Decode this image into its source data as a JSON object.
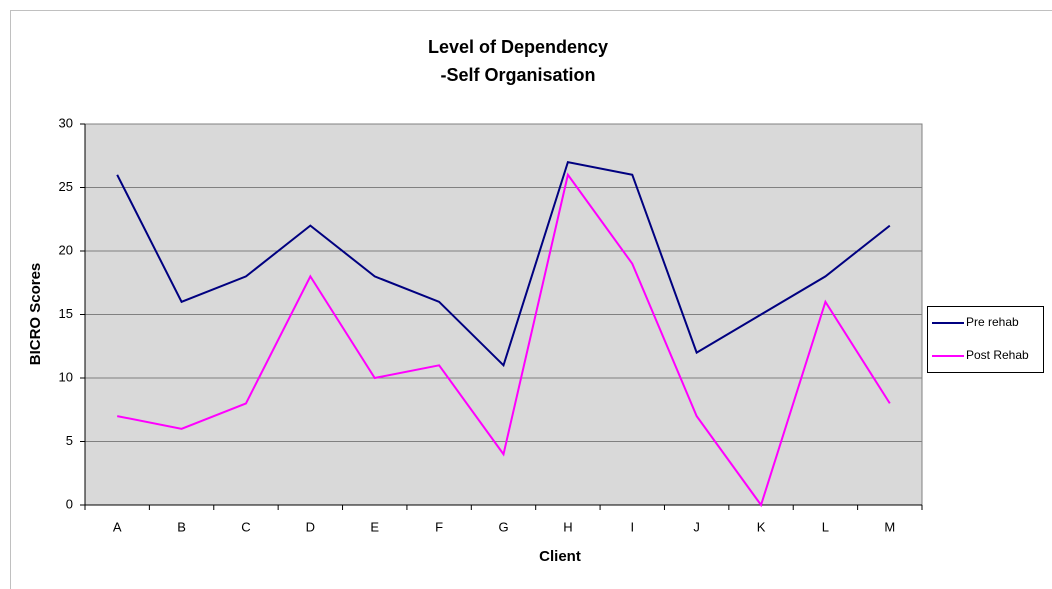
{
  "chart_data": {
    "type": "line",
    "title": [
      "Level of Dependency",
      "-Self Organisation"
    ],
    "x_label": "Client",
    "y_label": "BICRO Scores",
    "categories": [
      "A",
      "B",
      "C",
      "D",
      "E",
      "F",
      "G",
      "H",
      "I",
      "J",
      "K",
      "L",
      "M"
    ],
    "series": [
      {
        "name": "Pre rehab",
        "color": "#000080",
        "values": [
          26,
          16,
          18,
          22,
          18,
          16,
          11,
          27,
          26,
          12,
          15,
          18,
          22
        ]
      },
      {
        "name": "Post Rehab",
        "color": "#ff00ff",
        "values": [
          7,
          6,
          8,
          18,
          10,
          11,
          4,
          26,
          19,
          7,
          0,
          16,
          8
        ]
      }
    ],
    "ylim": [
      0,
      30
    ],
    "yticks": [
      0,
      5,
      10,
      15,
      20,
      25,
      30
    ],
    "grid": true,
    "legend": "right"
  }
}
